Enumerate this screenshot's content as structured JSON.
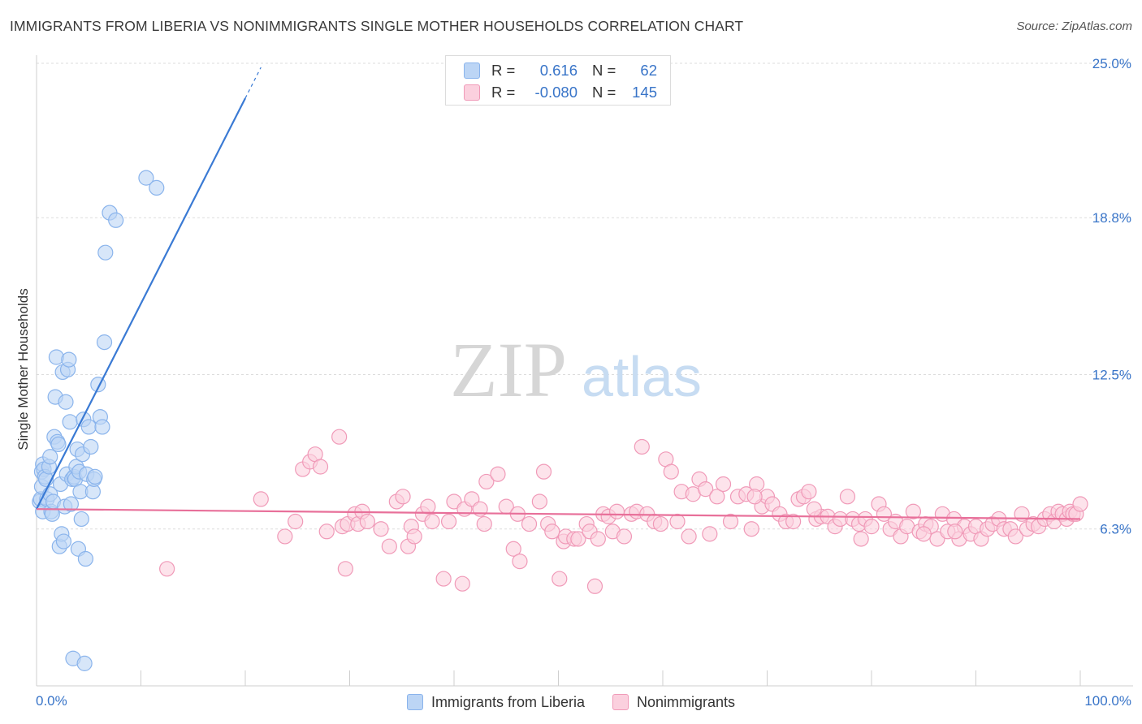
{
  "header": {
    "title": "IMMIGRANTS FROM LIBERIA VS NONIMMIGRANTS SINGLE MOTHER HOUSEHOLDS CORRELATION CHART",
    "source": "Source: ZipAtlas.com"
  },
  "watermark": {
    "zip": "ZIP",
    "atlas": "atlas"
  },
  "stats": [
    {
      "r_label": "R =",
      "r_value": "0.616",
      "n_label": "N =",
      "n_value": "62",
      "color": "#8ab4ec",
      "fill": "#bcd5f5"
    },
    {
      "r_label": "R =",
      "r_value": "-0.080",
      "n_label": "N =",
      "n_value": "145",
      "color": "#f09ab8",
      "fill": "#fbd0de"
    }
  ],
  "legend": [
    {
      "label": "Immigrants from Liberia",
      "color": "#8ab4ec",
      "fill": "#bcd5f5"
    },
    {
      "label": "Nonimmigrants",
      "color": "#f09ab8",
      "fill": "#fbd0de"
    }
  ],
  "chart_data": {
    "type": "scatter",
    "title": "IMMIGRANTS FROM LIBERIA VS NONIMMIGRANTS SINGLE MOTHER HOUSEHOLDS CORRELATION CHART",
    "xlabel": "",
    "ylabel": "Single Mother Households",
    "xlim": [
      0,
      100
    ],
    "ylim": [
      0,
      25.0
    ],
    "x_tick_labels": {
      "min": "0.0%",
      "max": "100.0%"
    },
    "y_ticks": [
      {
        "value": 6.3,
        "label": "6.3%"
      },
      {
        "value": 12.5,
        "label": "12.5%"
      },
      {
        "value": 18.8,
        "label": "18.8%"
      },
      {
        "value": 25.0,
        "label": "25.0%"
      }
    ],
    "grid": true,
    "series": [
      {
        "name": "Immigrants from Liberia",
        "stroke": "#8ab4ec",
        "fill": "#bcd5f5",
        "trend_color": "#3a7ad4",
        "trend": {
          "x0": 0.0,
          "y0": 7.1,
          "x1": 20.0,
          "y1": 23.6,
          "dash_to_x": 21.5
        },
        "points": [
          [
            0.3,
            7.4
          ],
          [
            0.4,
            7.5
          ],
          [
            0.5,
            8.0
          ],
          [
            0.5,
            8.6
          ],
          [
            0.6,
            8.9
          ],
          [
            0.6,
            7.0
          ],
          [
            0.7,
            8.7
          ],
          [
            0.8,
            8.4
          ],
          [
            0.9,
            8.3
          ],
          [
            1.0,
            7.5
          ],
          [
            1.2,
            8.8
          ],
          [
            1.3,
            9.2
          ],
          [
            1.3,
            7.7
          ],
          [
            1.4,
            7.0
          ],
          [
            1.5,
            6.9
          ],
          [
            1.6,
            7.4
          ],
          [
            1.7,
            10.0
          ],
          [
            1.8,
            11.6
          ],
          [
            1.9,
            13.2
          ],
          [
            2.0,
            9.8
          ],
          [
            2.1,
            9.7
          ],
          [
            2.2,
            5.6
          ],
          [
            2.3,
            8.1
          ],
          [
            2.4,
            6.1
          ],
          [
            2.5,
            12.6
          ],
          [
            2.6,
            5.8
          ],
          [
            2.7,
            7.2
          ],
          [
            2.8,
            11.4
          ],
          [
            2.9,
            8.5
          ],
          [
            3.0,
            12.7
          ],
          [
            3.1,
            13.1
          ],
          [
            3.2,
            10.6
          ],
          [
            3.3,
            7.3
          ],
          [
            3.4,
            8.3
          ],
          [
            3.5,
            1.1
          ],
          [
            3.6,
            8.4
          ],
          [
            3.7,
            8.3
          ],
          [
            3.8,
            8.8
          ],
          [
            3.9,
            9.5
          ],
          [
            4.0,
            5.5
          ],
          [
            4.1,
            8.6
          ],
          [
            4.2,
            7.8
          ],
          [
            4.3,
            6.7
          ],
          [
            4.4,
            9.3
          ],
          [
            4.5,
            10.7
          ],
          [
            4.6,
            0.9
          ],
          [
            4.7,
            5.1
          ],
          [
            4.8,
            8.5
          ],
          [
            5.0,
            10.4
          ],
          [
            5.2,
            9.6
          ],
          [
            5.4,
            7.8
          ],
          [
            5.5,
            8.3
          ],
          [
            5.6,
            8.4
          ],
          [
            5.9,
            12.1
          ],
          [
            6.1,
            10.8
          ],
          [
            6.3,
            10.4
          ],
          [
            6.5,
            13.8
          ],
          [
            6.6,
            17.4
          ],
          [
            7.0,
            19.0
          ],
          [
            7.6,
            18.7
          ],
          [
            10.5,
            20.4
          ],
          [
            11.5,
            20.0
          ]
        ]
      },
      {
        "name": "Nonimmigrants",
        "stroke": "#f09ab8",
        "fill": "#fbd0de",
        "trend_color": "#e8709a",
        "trend": {
          "x0": 0.0,
          "y0": 7.1,
          "x1": 100.0,
          "y1": 6.7
        },
        "points": [
          [
            12.5,
            4.7
          ],
          [
            21.5,
            7.5
          ],
          [
            23.8,
            6.0
          ],
          [
            24.8,
            6.6
          ],
          [
            25.5,
            8.7
          ],
          [
            26.2,
            9.0
          ],
          [
            26.7,
            9.3
          ],
          [
            27.2,
            8.8
          ],
          [
            27.8,
            6.2
          ],
          [
            29.0,
            10.0
          ],
          [
            29.3,
            6.4
          ],
          [
            29.6,
            4.7
          ],
          [
            29.8,
            6.5
          ],
          [
            30.5,
            6.9
          ],
          [
            30.8,
            6.5
          ],
          [
            31.2,
            7.0
          ],
          [
            31.7,
            6.6
          ],
          [
            33.0,
            6.3
          ],
          [
            33.8,
            5.6
          ],
          [
            34.5,
            7.4
          ],
          [
            35.1,
            7.6
          ],
          [
            35.6,
            5.6
          ],
          [
            35.9,
            6.4
          ],
          [
            36.2,
            6.0
          ],
          [
            37.0,
            6.9
          ],
          [
            37.5,
            7.2
          ],
          [
            37.9,
            6.6
          ],
          [
            39.0,
            4.3
          ],
          [
            39.5,
            6.6
          ],
          [
            40.0,
            7.4
          ],
          [
            40.8,
            4.1
          ],
          [
            41.0,
            7.1
          ],
          [
            41.7,
            7.5
          ],
          [
            42.5,
            7.1
          ],
          [
            42.9,
            6.5
          ],
          [
            43.1,
            8.2
          ],
          [
            44.2,
            8.5
          ],
          [
            45.0,
            7.2
          ],
          [
            45.7,
            5.5
          ],
          [
            46.1,
            6.9
          ],
          [
            46.3,
            5.0
          ],
          [
            47.2,
            6.5
          ],
          [
            48.2,
            7.4
          ],
          [
            48.6,
            8.6
          ],
          [
            49.0,
            6.5
          ],
          [
            49.4,
            6.2
          ],
          [
            50.1,
            4.3
          ],
          [
            50.5,
            5.8
          ],
          [
            50.7,
            6.0
          ],
          [
            51.5,
            5.9
          ],
          [
            51.9,
            5.9
          ],
          [
            52.7,
            6.5
          ],
          [
            53.0,
            6.2
          ],
          [
            53.5,
            4.0
          ],
          [
            53.8,
            5.9
          ],
          [
            54.3,
            6.9
          ],
          [
            54.8,
            6.8
          ],
          [
            55.2,
            6.2
          ],
          [
            55.6,
            7.0
          ],
          [
            56.3,
            6.0
          ],
          [
            57.0,
            6.9
          ],
          [
            57.5,
            7.0
          ],
          [
            58.0,
            9.6
          ],
          [
            58.5,
            6.9
          ],
          [
            59.2,
            6.6
          ],
          [
            59.8,
            6.5
          ],
          [
            60.3,
            9.1
          ],
          [
            60.8,
            8.6
          ],
          [
            61.4,
            6.6
          ],
          [
            61.8,
            7.8
          ],
          [
            62.5,
            6.0
          ],
          [
            62.9,
            7.7
          ],
          [
            63.5,
            8.3
          ],
          [
            64.1,
            7.9
          ],
          [
            64.5,
            6.1
          ],
          [
            65.2,
            7.6
          ],
          [
            65.8,
            8.1
          ],
          [
            66.5,
            6.6
          ],
          [
            67.2,
            7.6
          ],
          [
            68.0,
            7.7
          ],
          [
            68.5,
            6.3
          ],
          [
            69.0,
            8.1
          ],
          [
            69.5,
            7.2
          ],
          [
            70.0,
            7.6
          ],
          [
            70.5,
            7.3
          ],
          [
            71.2,
            6.9
          ],
          [
            71.8,
            6.6
          ],
          [
            72.5,
            6.6
          ],
          [
            73.0,
            7.5
          ],
          [
            73.5,
            7.6
          ],
          [
            74.0,
            7.8
          ],
          [
            74.7,
            6.7
          ],
          [
            75.2,
            6.8
          ],
          [
            75.8,
            6.8
          ],
          [
            76.5,
            6.4
          ],
          [
            77.0,
            6.7
          ],
          [
            77.7,
            7.6
          ],
          [
            78.2,
            6.7
          ],
          [
            78.8,
            6.5
          ],
          [
            79.4,
            6.7
          ],
          [
            80.0,
            6.4
          ],
          [
            80.7,
            7.3
          ],
          [
            81.2,
            6.9
          ],
          [
            81.8,
            6.3
          ],
          [
            82.3,
            6.6
          ],
          [
            82.8,
            6.0
          ],
          [
            83.4,
            6.4
          ],
          [
            84.0,
            7.0
          ],
          [
            84.6,
            6.2
          ],
          [
            85.2,
            6.5
          ],
          [
            85.7,
            6.4
          ],
          [
            86.3,
            5.9
          ],
          [
            86.8,
            6.9
          ],
          [
            87.3,
            6.2
          ],
          [
            87.9,
            6.7
          ],
          [
            88.4,
            5.9
          ],
          [
            88.9,
            6.4
          ],
          [
            89.5,
            6.1
          ],
          [
            90.0,
            6.4
          ],
          [
            90.5,
            5.9
          ],
          [
            91.1,
            6.3
          ],
          [
            91.6,
            6.5
          ],
          [
            92.2,
            6.7
          ],
          [
            92.7,
            6.3
          ],
          [
            93.3,
            6.3
          ],
          [
            93.8,
            6.0
          ],
          [
            94.4,
            6.9
          ],
          [
            94.9,
            6.3
          ],
          [
            95.5,
            6.5
          ],
          [
            96.0,
            6.4
          ],
          [
            96.6,
            6.7
          ],
          [
            97.1,
            6.9
          ],
          [
            97.5,
            6.6
          ],
          [
            97.9,
            7.0
          ],
          [
            98.3,
            6.9
          ],
          [
            98.7,
            6.7
          ],
          [
            99.0,
            7.0
          ],
          [
            99.3,
            6.9
          ],
          [
            99.6,
            6.9
          ],
          [
            100.0,
            7.3
          ],
          [
            88.0,
            6.2
          ],
          [
            85.0,
            6.1
          ],
          [
            79.0,
            5.9
          ],
          [
            74.5,
            7.1
          ],
          [
            68.8,
            7.6
          ]
        ]
      }
    ]
  }
}
